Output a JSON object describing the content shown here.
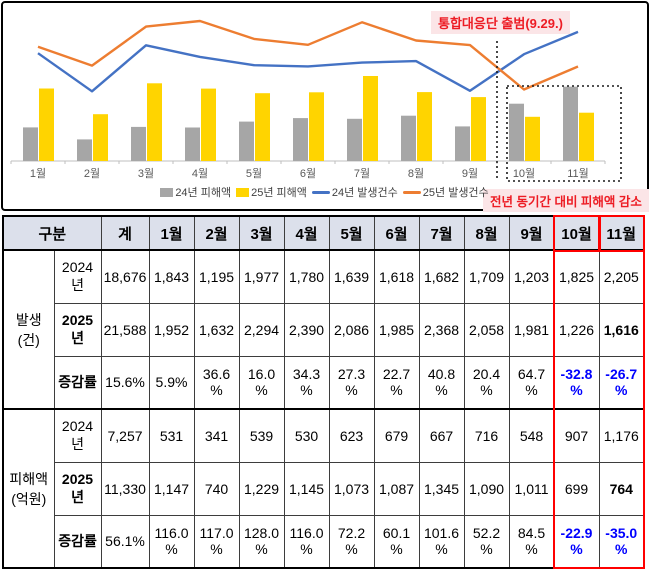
{
  "chart_data": {
    "type": "combo-bar-line",
    "categories": [
      "1월",
      "2월",
      "3월",
      "4월",
      "5월",
      "6월",
      "7월",
      "8월",
      "9월",
      "10월",
      "11월"
    ],
    "bar_series": [
      {
        "name": "24년 피해액",
        "color": "#A6A6A6",
        "values": [
          531,
          341,
          539,
          530,
          623,
          679,
          667,
          716,
          548,
          907,
          1176
        ]
      },
      {
        "name": "25년 피해액",
        "color": "#FFD400",
        "values": [
          1147,
          740,
          1229,
          1145,
          1073,
          1087,
          1345,
          1090,
          1011,
          699,
          764
        ]
      }
    ],
    "line_series": [
      {
        "name": "24년 발생건수",
        "color": "#4472C4",
        "values": [
          1843,
          1195,
          1977,
          1780,
          1639,
          1618,
          1682,
          1709,
          1203,
          1825,
          2205
        ]
      },
      {
        "name": "25년 발생건수",
        "color": "#ED7D31",
        "values": [
          1952,
          1632,
          2294,
          2390,
          2086,
          1985,
          2368,
          2058,
          1981,
          1226,
          1616
        ]
      }
    ],
    "legend_position": "bottom",
    "axis": {
      "x_visible": true,
      "y_visible": false,
      "x_label_color": "#595959"
    },
    "highlight": {
      "months": [
        "10월",
        "11월"
      ],
      "style": "dotted-box"
    },
    "annotations": {
      "launch": {
        "text": "통합대응단 출범(9.29.)",
        "color": "#ED1C24",
        "bg": "#FBE5E7"
      },
      "decrease": {
        "text": "전년 동기간 대비 피해액 감소",
        "color": "#ED1C24",
        "bg": "#FBE5E7"
      }
    }
  },
  "table": {
    "corner_header": "구분",
    "headers": [
      "계",
      "1월",
      "2월",
      "3월",
      "4월",
      "5월",
      "6월",
      "7월",
      "8월",
      "9월",
      "10월",
      "11월"
    ],
    "header_bg": "#DCE0EB",
    "highlight_columns": [
      "10월",
      "11월"
    ],
    "highlight_color": "#FF0000",
    "negative_color": "#0000FF",
    "groups": [
      {
        "label": "발생\n(건)",
        "rows": [
          {
            "label": "2024\n년",
            "label_bold": false,
            "bold_cells": [],
            "blue_cells": [],
            "values": [
              "18,676",
              "1,843",
              "1,195",
              "1,977",
              "1,780",
              "1,639",
              "1,618",
              "1,682",
              "1,709",
              "1,203",
              "1,825",
              "2,205"
            ]
          },
          {
            "label": "2025\n년",
            "label_bold": true,
            "bold_cells": [
              11
            ],
            "blue_cells": [],
            "values": [
              "21,588",
              "1,952",
              "1,632",
              "2,294",
              "2,390",
              "2,086",
              "1,985",
              "2,368",
              "2,058",
              "1,981",
              "1,226",
              "1,616"
            ]
          },
          {
            "label": "증감률",
            "label_bold": true,
            "bold_cells": [
              10,
              11
            ],
            "blue_cells": [
              10,
              11
            ],
            "values": [
              "15.6%",
              "5.9%",
              "36.6\n%",
              "16.0\n%",
              "34.3\n%",
              "27.3\n%",
              "22.7\n%",
              "40.8\n%",
              "20.4\n%",
              "64.7\n%",
              "-32.8\n%",
              "-26.7\n%"
            ]
          }
        ]
      },
      {
        "label": "피해액\n(억원)",
        "rows": [
          {
            "label": "2024\n년",
            "label_bold": false,
            "bold_cells": [],
            "blue_cells": [],
            "values": [
              "7,257",
              "531",
              "341",
              "539",
              "530",
              "623",
              "679",
              "667",
              "716",
              "548",
              "907",
              "1,176"
            ]
          },
          {
            "label": "2025\n년",
            "label_bold": true,
            "bold_cells": [
              11
            ],
            "blue_cells": [],
            "values": [
              "11,330",
              "1,147",
              "740",
              "1,229",
              "1,145",
              "1,073",
              "1,087",
              "1,345",
              "1,090",
              "1,011",
              "699",
              "764"
            ]
          },
          {
            "label": "증감률",
            "label_bold": true,
            "bold_cells": [
              10,
              11
            ],
            "blue_cells": [
              10,
              11
            ],
            "values": [
              "56.1%",
              "116.0\n%",
              "117.0\n%",
              "128.0\n%",
              "116.0\n%",
              "72.2\n%",
              "60.1\n%",
              "101.6\n%",
              "52.2\n%",
              "84.5\n%",
              "-22.9\n%",
              "-35.0\n%"
            ]
          }
        ]
      }
    ]
  }
}
